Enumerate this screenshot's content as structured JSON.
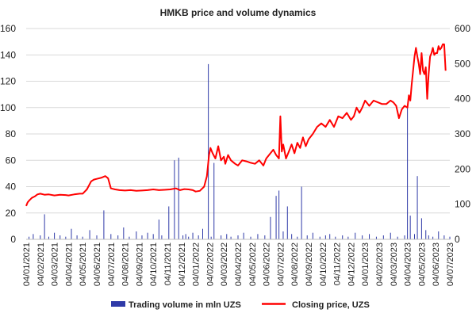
{
  "chart_data": {
    "type": "line+bar",
    "title": "HMKB price and volume dynamics",
    "left_axis": {
      "range": [
        0,
        160
      ],
      "ticks": [
        0,
        20,
        40,
        60,
        80,
        100,
        120,
        140,
        160
      ],
      "tick_labels": [
        "0",
        "20",
        "40",
        "60",
        "80",
        "100",
        "120",
        "140",
        "160"
      ]
    },
    "right_axis": {
      "range": [
        0,
        600
      ],
      "ticks": [
        0,
        100,
        200,
        300,
        400,
        500,
        600
      ],
      "tick_labels": [
        "0",
        "100",
        "200",
        "300",
        "400",
        "500",
        "600"
      ]
    },
    "x_ticks": [
      "04/01/2021",
      "04/02/2021",
      "04/03/2021",
      "04/04/2021",
      "04/05/2021",
      "04/06/2021",
      "04/07/2021",
      "04/08/2021",
      "04/09/2021",
      "04/10/2021",
      "04/11/2021",
      "04/12/2021",
      "04/01/2022",
      "04/02/2022",
      "04/03/2022",
      "04/04/2022",
      "04/05/2022",
      "04/06/2022",
      "04/07/2022",
      "04/08/2022",
      "04/09/2022",
      "04/10/2022",
      "04/11/2022",
      "04/12/2022",
      "04/01/2023",
      "04/02/2023",
      "04/03/2023",
      "04/04/2023",
      "04/05/2023",
      "04/06/2023",
      "04/07/2023"
    ],
    "grid": "horizontal",
    "legend_position": "bottom",
    "colors": {
      "volume": "#2f3aa8",
      "price": "#ff0000",
      "grid": "#d9d9d9"
    },
    "series": [
      {
        "name": "Trading volume in mln UZS",
        "type": "bar",
        "axis": "left",
        "x": [
          0.2,
          0.5,
          1.0,
          1.3,
          1.6,
          2.0,
          2.4,
          2.8,
          3.2,
          3.6,
          4.0,
          4.5,
          5.0,
          5.5,
          6.0,
          6.5,
          6.9,
          7.3,
          7.8,
          8.2,
          8.6,
          9.0,
          9.4,
          9.6,
          10.1,
          10.5,
          10.8,
          11.1,
          11.3,
          11.5,
          11.8,
          12.2,
          12.5,
          12.9,
          13.1,
          13.3,
          13.8,
          14.2,
          14.5,
          15.0,
          15.4,
          15.9,
          16.4,
          16.9,
          17.3,
          17.7,
          17.9,
          18.2,
          18.5,
          18.8,
          19.2,
          19.5,
          19.9,
          20.3,
          20.8,
          21.2,
          21.5,
          21.9,
          22.4,
          22.8,
          23.3,
          23.8,
          24.3,
          24.8,
          25.3,
          25.8,
          26.3,
          26.8,
          27.0,
          27.2,
          27.5,
          27.7,
          28.0,
          28.3,
          28.5,
          28.8,
          29.2,
          29.6,
          30.0
        ],
        "values": [
          2,
          4,
          3,
          19,
          2,
          5,
          3,
          2,
          8,
          3,
          2,
          7,
          3,
          22,
          4,
          3,
          9,
          2,
          6,
          3,
          5,
          4,
          15,
          3,
          25,
          60,
          62,
          3,
          4,
          2,
          5,
          3,
          8,
          133,
          2,
          58,
          3,
          4,
          2,
          3,
          5,
          2,
          4,
          3,
          17,
          33,
          37,
          6,
          25,
          4,
          2,
          40,
          3,
          5,
          2,
          3,
          4,
          2,
          3,
          2,
          5,
          3,
          4,
          2,
          3,
          5,
          2,
          3,
          100,
          18,
          4,
          48,
          16,
          7,
          3,
          2,
          6,
          3,
          2
        ]
      },
      {
        "name": "Closing price, UZS",
        "type": "line",
        "axis": "right",
        "x": [
          0,
          0.1,
          0.2,
          0.4,
          0.6,
          0.8,
          1.0,
          1.3,
          1.6,
          2.0,
          2.4,
          2.8,
          3.0,
          3.4,
          3.8,
          4.0,
          4.3,
          4.6,
          4.8,
          5.0,
          5.3,
          5.6,
          5.8,
          6.0,
          6.3,
          6.6,
          7.0,
          7.4,
          7.8,
          8.2,
          8.6,
          9.0,
          9.4,
          9.8,
          10.2,
          10.6,
          10.9,
          11.2,
          11.5,
          11.8,
          12.0,
          12.3,
          12.6,
          12.8,
          12.95,
          13.05,
          13.2,
          13.4,
          13.6,
          13.8,
          14.0,
          14.1,
          14.3,
          14.5,
          14.8,
          15.0,
          15.3,
          15.6,
          15.9,
          16.2,
          16.5,
          16.8,
          17.0,
          17.3,
          17.5,
          17.7,
          17.9,
          18.0,
          18.1,
          18.2,
          18.4,
          18.6,
          18.8,
          19.0,
          19.2,
          19.4,
          19.6,
          19.8,
          20.0,
          20.3,
          20.6,
          20.9,
          21.2,
          21.5,
          21.8,
          22.1,
          22.4,
          22.7,
          23.0,
          23.2,
          23.4,
          23.6,
          23.8,
          24.0,
          24.3,
          24.6,
          24.9,
          25.2,
          25.5,
          25.8,
          26.0,
          26.2,
          26.4,
          26.6,
          26.8,
          27.0,
          27.1,
          27.2,
          27.3,
          27.4,
          27.5,
          27.6,
          27.7,
          27.8,
          27.9,
          28.0,
          28.1,
          28.2,
          28.3,
          28.4,
          28.5,
          28.6,
          28.7,
          28.8,
          28.9,
          29.0,
          29.1,
          29.2,
          29.3,
          29.4,
          29.5,
          29.6,
          29.7
        ],
        "values": [
          95,
          105,
          110,
          118,
          122,
          128,
          130,
          127,
          128,
          125,
          127,
          126,
          125,
          128,
          130,
          130,
          142,
          165,
          170,
          172,
          175,
          180,
          174,
          145,
          142,
          140,
          139,
          140,
          138,
          139,
          140,
          142,
          140,
          141,
          142,
          145,
          140,
          143,
          142,
          140,
          136,
          138,
          150,
          180,
          240,
          260,
          245,
          230,
          265,
          225,
          235,
          215,
          240,
          225,
          215,
          210,
          225,
          222,
          218,
          215,
          225,
          210,
          230,
          245,
          255,
          240,
          230,
          350,
          250,
          270,
          230,
          250,
          270,
          245,
          275,
          260,
          290,
          265,
          285,
          300,
          320,
          330,
          320,
          340,
          320,
          350,
          345,
          360,
          340,
          350,
          375,
          360,
          375,
          395,
          380,
          395,
          390,
          385,
          385,
          395,
          390,
          380,
          345,
          370,
          380,
          375,
          410,
          395,
          440,
          480,
          520,
          545,
          520,
          500,
          470,
          530,
          480,
          470,
          490,
          400,
          470,
          520,
          530,
          545,
          525,
          530,
          530,
          550,
          540,
          545,
          555,
          555,
          480
        ]
      }
    ]
  }
}
